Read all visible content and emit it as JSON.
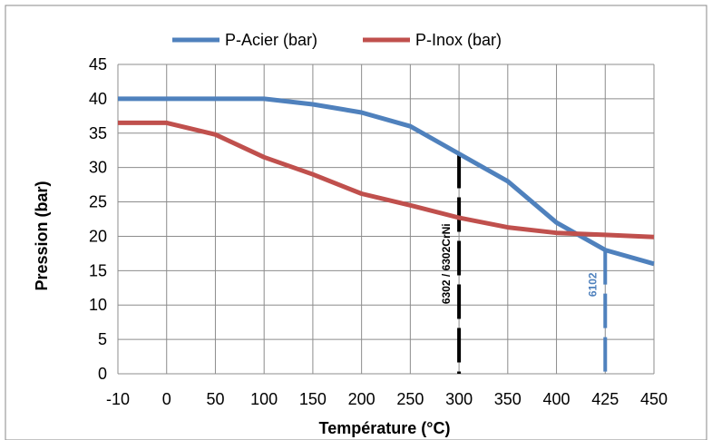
{
  "chart_data": {
    "type": "line",
    "title": "",
    "xlabel": "Température (°C)",
    "ylabel": "Pression (bar)",
    "categories": [
      "-10",
      "0",
      "50",
      "100",
      "150",
      "200",
      "250",
      "300",
      "350",
      "400",
      "425",
      "450"
    ],
    "x_ticks": [
      "-10",
      "0",
      "50",
      "100",
      "150",
      "200",
      "250",
      "300",
      "350",
      "400",
      "425",
      "450"
    ],
    "y_ticks": [
      "0",
      "5",
      "10",
      "15",
      "20",
      "25",
      "30",
      "35",
      "40",
      "45"
    ],
    "ylim": [
      0,
      45
    ],
    "grid": true,
    "legend_position": "top",
    "series": [
      {
        "name": "P-Acier (bar)",
        "color": "#4F81BD",
        "x": [
          -10,
          0,
          50,
          100,
          150,
          200,
          250,
          300,
          350,
          400,
          425,
          450
        ],
        "values": [
          40,
          40,
          40,
          40,
          39.2,
          38,
          36,
          32,
          28,
          22,
          18,
          16
        ]
      },
      {
        "name": "P-Inox (bar)",
        "color": "#C0504D",
        "x": [
          -10,
          0,
          50,
          100,
          150,
          200,
          250,
          300,
          350,
          400,
          425,
          450
        ],
        "values": [
          36.5,
          36.5,
          34.8,
          31.5,
          29,
          26.2,
          24.5,
          22.7,
          21.3,
          20.5,
          20.2,
          19.9
        ]
      }
    ],
    "annotations": [
      {
        "text": "6302 / 6302CrNi",
        "x": 300,
        "y_top": 32,
        "color": "#000000"
      },
      {
        "text": "6102",
        "x": 425,
        "y_top": 18,
        "color": "#4F81BD"
      }
    ]
  }
}
